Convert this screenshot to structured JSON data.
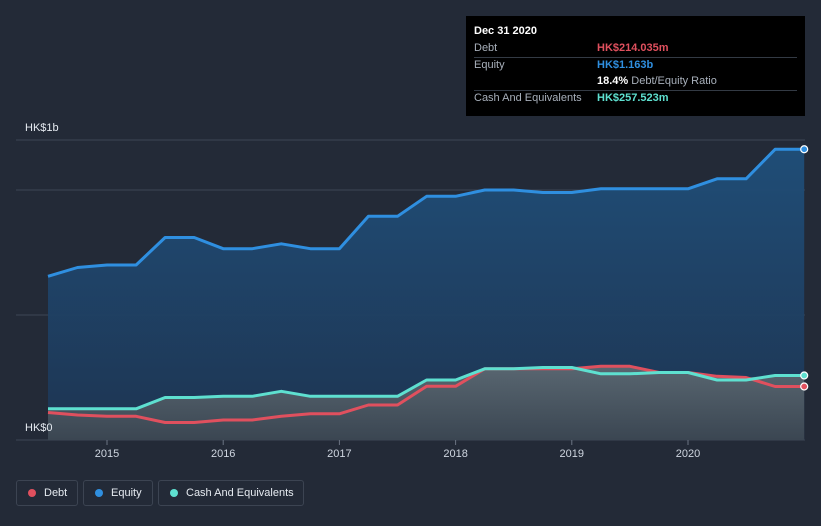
{
  "tooltip": {
    "date": "Dec 31 2020",
    "debt_label": "Debt",
    "debt_value": "HK$214.035m",
    "equity_label": "Equity",
    "equity_value": "HK$1.163b",
    "ratio_value": "18.4%",
    "ratio_label": "Debt/Equity Ratio",
    "cash_label": "Cash And Equivalents",
    "cash_value": "HK$257.523m"
  },
  "legend": {
    "debt": "Debt",
    "equity": "Equity",
    "cash": "Cash And Equivalents"
  },
  "colors": {
    "debt": "#e0505e",
    "equity": "#2f8fe0",
    "cash": "#5ee0d0",
    "background": "#232a37"
  },
  "chart_data": {
    "type": "area",
    "y_axis_labels": [
      "HK$1b",
      "HK$0"
    ],
    "ylim": [
      0,
      1.2
    ],
    "y_unit": "HK$ billions",
    "x_ticks": [
      "2015",
      "2016",
      "2017",
      "2018",
      "2019",
      "2020"
    ],
    "series": [
      {
        "name": "Equity",
        "points": [
          [
            2014.5,
            0.655
          ],
          [
            2014.75,
            0.69
          ],
          [
            2015.0,
            0.7
          ],
          [
            2015.25,
            0.7
          ],
          [
            2015.5,
            0.81
          ],
          [
            2015.75,
            0.81
          ],
          [
            2016.0,
            0.765
          ],
          [
            2016.25,
            0.765
          ],
          [
            2016.5,
            0.785
          ],
          [
            2016.75,
            0.765
          ],
          [
            2017.0,
            0.765
          ],
          [
            2017.25,
            0.895
          ],
          [
            2017.5,
            0.895
          ],
          [
            2017.75,
            0.975
          ],
          [
            2018.0,
            0.975
          ],
          [
            2018.25,
            1.0
          ],
          [
            2018.5,
            1.0
          ],
          [
            2018.75,
            0.99
          ],
          [
            2019.0,
            0.99
          ],
          [
            2019.25,
            1.005
          ],
          [
            2019.5,
            1.005
          ],
          [
            2019.75,
            1.005
          ],
          [
            2020.0,
            1.005
          ],
          [
            2020.25,
            1.045
          ],
          [
            2020.5,
            1.045
          ],
          [
            2020.75,
            1.163
          ],
          [
            2021.0,
            1.163
          ]
        ]
      },
      {
        "name": "Debt",
        "points": [
          [
            2014.5,
            0.11
          ],
          [
            2014.75,
            0.1
          ],
          [
            2015.0,
            0.095
          ],
          [
            2015.25,
            0.095
          ],
          [
            2015.5,
            0.07
          ],
          [
            2015.75,
            0.07
          ],
          [
            2016.0,
            0.08
          ],
          [
            2016.25,
            0.08
          ],
          [
            2016.5,
            0.095
          ],
          [
            2016.75,
            0.105
          ],
          [
            2017.0,
            0.105
          ],
          [
            2017.25,
            0.14
          ],
          [
            2017.5,
            0.14
          ],
          [
            2017.75,
            0.215
          ],
          [
            2018.0,
            0.215
          ],
          [
            2018.25,
            0.285
          ],
          [
            2018.5,
            0.285
          ],
          [
            2018.75,
            0.285
          ],
          [
            2019.0,
            0.285
          ],
          [
            2019.25,
            0.295
          ],
          [
            2019.5,
            0.295
          ],
          [
            2019.75,
            0.27
          ],
          [
            2020.0,
            0.27
          ],
          [
            2020.25,
            0.255
          ],
          [
            2020.5,
            0.25
          ],
          [
            2020.75,
            0.214
          ],
          [
            2021.0,
            0.214
          ]
        ]
      },
      {
        "name": "Cash And Equivalents",
        "points": [
          [
            2014.5,
            0.125
          ],
          [
            2014.75,
            0.125
          ],
          [
            2015.0,
            0.125
          ],
          [
            2015.25,
            0.125
          ],
          [
            2015.5,
            0.17
          ],
          [
            2015.75,
            0.17
          ],
          [
            2016.0,
            0.175
          ],
          [
            2016.25,
            0.175
          ],
          [
            2016.5,
            0.195
          ],
          [
            2016.75,
            0.175
          ],
          [
            2017.0,
            0.175
          ],
          [
            2017.25,
            0.175
          ],
          [
            2017.5,
            0.175
          ],
          [
            2017.75,
            0.24
          ],
          [
            2018.0,
            0.24
          ],
          [
            2018.25,
            0.285
          ],
          [
            2018.5,
            0.285
          ],
          [
            2018.75,
            0.29
          ],
          [
            2019.0,
            0.29
          ],
          [
            2019.25,
            0.265
          ],
          [
            2019.5,
            0.265
          ],
          [
            2019.75,
            0.27
          ],
          [
            2020.0,
            0.27
          ],
          [
            2020.25,
            0.24
          ],
          [
            2020.5,
            0.24
          ],
          [
            2020.75,
            0.258
          ],
          [
            2021.0,
            0.258
          ]
        ]
      }
    ]
  }
}
